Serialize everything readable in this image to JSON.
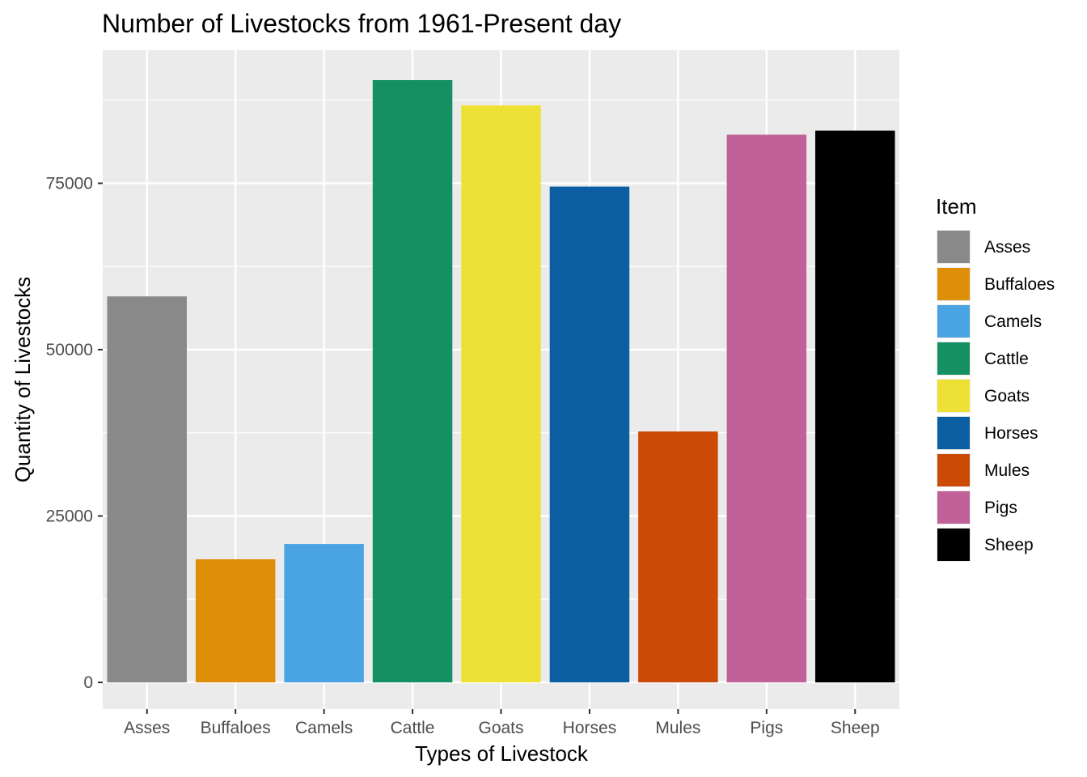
{
  "chart_data": {
    "type": "bar",
    "title": "Number of Livestocks from 1961-Present day",
    "xlabel": "Types of Livestock",
    "ylabel": "Quantity of Livestocks",
    "categories": [
      "Asses",
      "Buffaloes",
      "Camels",
      "Cattle",
      "Goats",
      "Horses",
      "Mules",
      "Pigs",
      "Sheep"
    ],
    "values": [
      58000,
      18500,
      20800,
      90500,
      86700,
      74500,
      37700,
      82300,
      82900
    ],
    "colors": [
      "#898989",
      "#DF8E07",
      "#4AA4E3",
      "#149062",
      "#EDE135",
      "#0B5EA2",
      "#CA4A06",
      "#C06297",
      "#000000"
    ],
    "ylim": [
      -4000,
      95000
    ],
    "yticks": [
      0,
      25000,
      50000,
      75000
    ],
    "ytick_labels": [
      "0",
      "25000",
      "50000",
      "75000"
    ],
    "grid": true,
    "legend": {
      "title": "Item",
      "placement": "right",
      "entries": [
        "Asses",
        "Buffaloes",
        "Camels",
        "Cattle",
        "Goats",
        "Horses",
        "Mules",
        "Pigs",
        "Sheep"
      ]
    }
  }
}
